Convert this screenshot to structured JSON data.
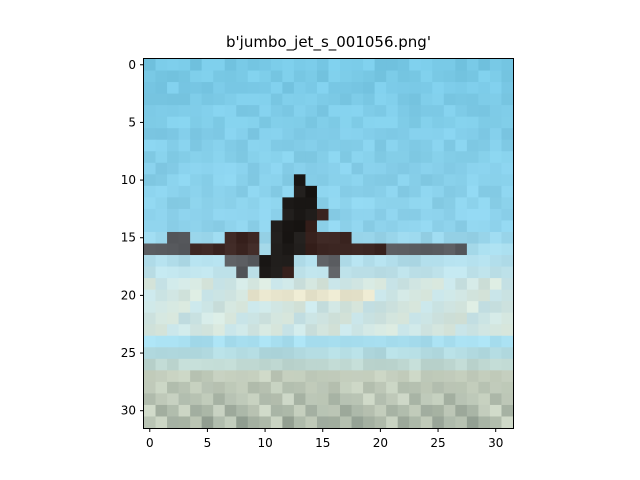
{
  "title": "b'jumbo_jet_s_001056.png'",
  "image": {
    "subject": "jumbo jet airplane flying in a blue sky over low-resolution terrain",
    "grid": [
      32,
      32
    ],
    "colors": {
      "sky_top": "#78c9e6",
      "sky_mid": "#8fd3ec",
      "sky_low": "#a8dff0",
      "haze": "#c8e4e8",
      "cloud": "#dfe7d6",
      "plane_dark": "#1d1a18",
      "plane_brown": "#3a2420",
      "wing_grey": "#5a5c60",
      "ground_light": "#c9d3c2",
      "ground_mid": "#a7b3a4",
      "ground_dark": "#7c8a7e"
    }
  },
  "axes": {
    "x_ticks": [
      "0",
      "5",
      "10",
      "15",
      "20",
      "25",
      "30"
    ],
    "y_ticks": [
      "0",
      "5",
      "10",
      "15",
      "20",
      "25",
      "30"
    ],
    "x_range": [
      -0.5,
      31.5
    ],
    "y_range": [
      -0.5,
      31.5
    ]
  }
}
